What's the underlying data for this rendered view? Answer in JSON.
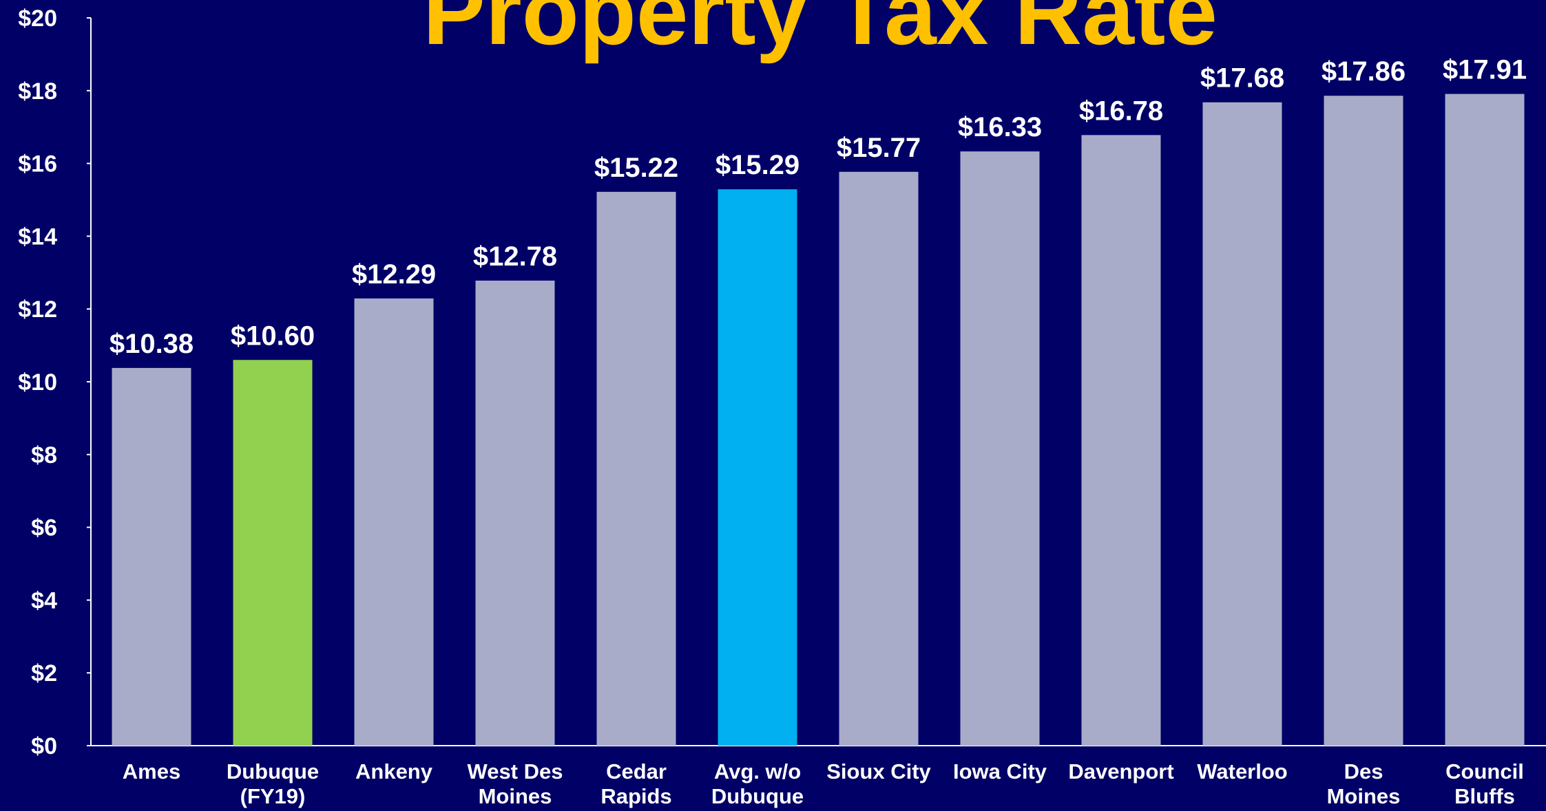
{
  "chart_data": {
    "type": "bar",
    "title": "Property Tax Rate",
    "categories": [
      "Ames",
      "Dubuque\n(FY19)",
      "Ankeny",
      "West Des\nMoines",
      "Cedar\nRapids",
      "Avg. w/o\nDubuque",
      "Sioux City",
      "Iowa City",
      "Davenport",
      "Waterloo",
      "Des\nMoines",
      "Council\nBluffs"
    ],
    "values": [
      10.38,
      10.6,
      12.29,
      12.78,
      15.22,
      15.29,
      15.77,
      16.33,
      16.78,
      17.68,
      17.86,
      17.91
    ],
    "value_labels": [
      "$10.38",
      "$10.60",
      "$12.29",
      "$12.78",
      "$15.22",
      "$15.29",
      "$15.77",
      "$16.33",
      "$16.78",
      "$17.68",
      "$17.86",
      "$17.91"
    ],
    "colors": [
      "#a9acc9",
      "#92d050",
      "#a9acc9",
      "#a9acc9",
      "#a9acc9",
      "#00b0f0",
      "#a9acc9",
      "#a9acc9",
      "#a9acc9",
      "#a9acc9",
      "#a9acc9",
      "#a9acc9"
    ],
    "ylim": [
      0,
      20
    ],
    "yticks": [
      {
        "value": 0,
        "label": "$0"
      },
      {
        "value": 2,
        "label": "$2"
      },
      {
        "value": 4,
        "label": "$4"
      },
      {
        "value": 6,
        "label": "$6"
      },
      {
        "value": 8,
        "label": "$8"
      },
      {
        "value": 10,
        "label": "$10"
      },
      {
        "value": 12,
        "label": "$12"
      },
      {
        "value": 14,
        "label": "$14"
      },
      {
        "value": 16,
        "label": "$16"
      },
      {
        "value": 18,
        "label": "$18"
      },
      {
        "value": 20,
        "label": "$20"
      }
    ],
    "grid": false
  }
}
